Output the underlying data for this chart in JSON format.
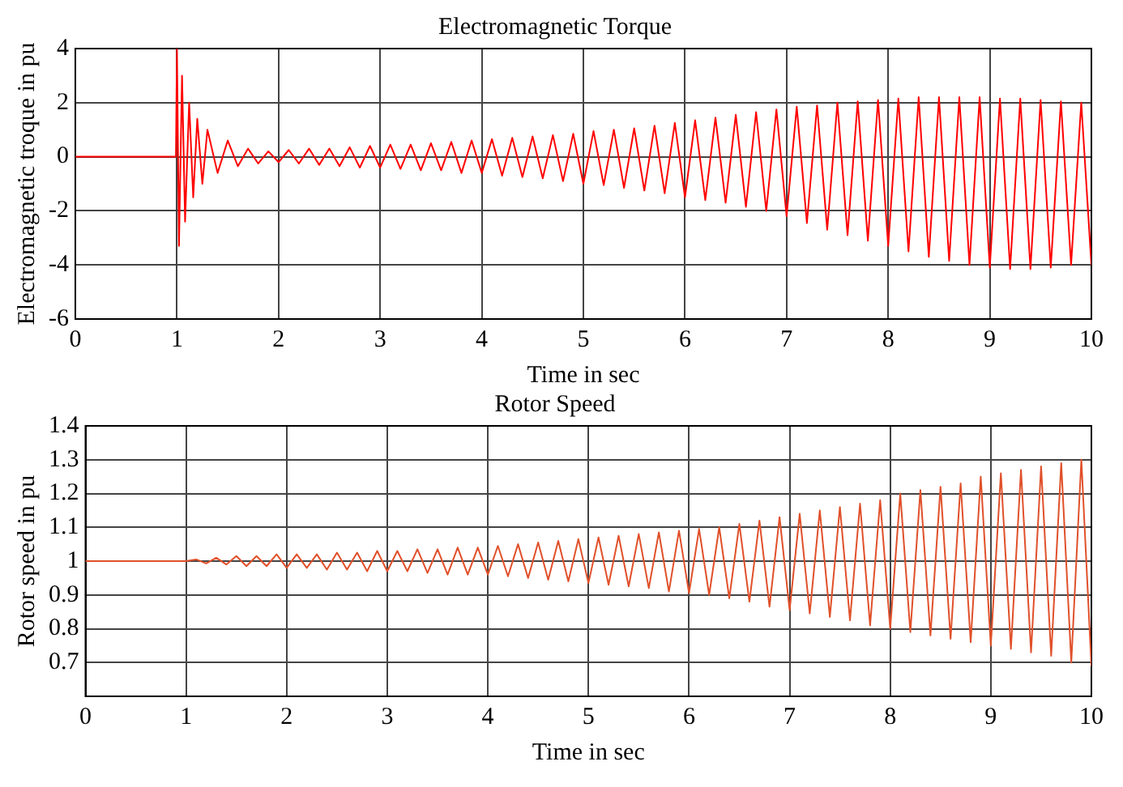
{
  "chart_data": [
    {
      "type": "line",
      "title": "Electromagnetic Torque",
      "xlabel": "Time in sec",
      "ylabel": "Electromagnetic troque in pu",
      "color": "#ff0000",
      "grid": true,
      "line_style": "solid",
      "marker": "none",
      "xlim": [
        0,
        10
      ],
      "xticks": [
        0,
        1,
        2,
        3,
        4,
        5,
        6,
        7,
        8,
        9,
        10
      ],
      "ylim": [
        -6,
        4
      ],
      "yticks": [
        -6,
        -4,
        -2,
        0,
        2,
        4
      ],
      "x": [
        0,
        0.99,
        1.0,
        1.02,
        1.05,
        1.08,
        1.12,
        1.16,
        1.2,
        1.25,
        1.3,
        1.4,
        1.5,
        1.6,
        1.7,
        1.8,
        1.9,
        2.0,
        2.1,
        2.2,
        2.3,
        2.4,
        2.5,
        2.6,
        2.7,
        2.8,
        2.9,
        3.0,
        3.1,
        3.2,
        3.3,
        3.4,
        3.5,
        3.6,
        3.7,
        3.8,
        3.9,
        4.0,
        4.1,
        4.2,
        4.3,
        4.4,
        4.5,
        4.6,
        4.7,
        4.8,
        4.9,
        5.0,
        5.1,
        5.2,
        5.3,
        5.4,
        5.5,
        5.6,
        5.7,
        5.8,
        5.9,
        6.0,
        6.1,
        6.2,
        6.3,
        6.4,
        6.5,
        6.6,
        6.7,
        6.8,
        6.9,
        7.0,
        7.1,
        7.2,
        7.3,
        7.4,
        7.5,
        7.6,
        7.7,
        7.8,
        7.9,
        8.0,
        8.1,
        8.2,
        8.3,
        8.4,
        8.5,
        8.6,
        8.7,
        8.8,
        8.9,
        9.0,
        9.1,
        9.2,
        9.3,
        9.4,
        9.5,
        9.6,
        9.7,
        9.8,
        9.9,
        10.0
      ],
      "values": [
        0,
        0,
        4,
        -3.3,
        3.0,
        -2.4,
        2.0,
        -1.5,
        1.4,
        -1.0,
        1.0,
        -0.6,
        0.6,
        -0.35,
        0.3,
        -0.25,
        0.2,
        -0.2,
        0.25,
        -0.25,
        0.3,
        -0.3,
        0.3,
        -0.35,
        0.35,
        -0.4,
        0.4,
        -0.4,
        0.45,
        -0.45,
        0.45,
        -0.5,
        0.5,
        -0.5,
        0.55,
        -0.6,
        0.6,
        -0.6,
        0.65,
        -0.7,
        0.7,
        -0.75,
        0.75,
        -0.8,
        0.8,
        -0.9,
        0.85,
        -1.0,
        0.95,
        -1.05,
        1.0,
        -1.15,
        1.05,
        -1.25,
        1.15,
        -1.35,
        1.25,
        -1.5,
        1.35,
        -1.6,
        1.45,
        -1.7,
        1.55,
        -1.85,
        1.65,
        -2.0,
        1.75,
        -2.2,
        1.85,
        -2.45,
        1.9,
        -2.7,
        2.0,
        -2.9,
        2.05,
        -3.1,
        2.1,
        -3.3,
        2.15,
        -3.5,
        2.2,
        -3.7,
        2.2,
        -3.85,
        2.2,
        -4.0,
        2.2,
        -4.1,
        2.15,
        -4.15,
        2.15,
        -4.15,
        2.1,
        -4.1,
        2.05,
        -4.0,
        2.0,
        -4.0
      ]
    },
    {
      "type": "line",
      "title": "Rotor Speed",
      "xlabel": "Time in sec",
      "ylabel": "Rotor speed in pu",
      "color": "#e0502a",
      "grid": true,
      "line_style": "solid",
      "marker": "none",
      "xlim": [
        0,
        10
      ],
      "xticks": [
        0,
        1,
        2,
        3,
        4,
        5,
        6,
        7,
        8,
        9,
        10
      ],
      "ylim": [
        0.6,
        1.4
      ],
      "yticks": [
        0.7,
        0.8,
        0.9,
        1,
        1.1,
        1.2,
        1.3,
        1.4
      ],
      "x": [
        0,
        1.0,
        1.1,
        1.2,
        1.3,
        1.4,
        1.5,
        1.6,
        1.7,
        1.8,
        1.9,
        2.0,
        2.1,
        2.2,
        2.3,
        2.4,
        2.5,
        2.6,
        2.7,
        2.8,
        2.9,
        3.0,
        3.1,
        3.2,
        3.3,
        3.4,
        3.5,
        3.6,
        3.7,
        3.8,
        3.9,
        4.0,
        4.1,
        4.2,
        4.3,
        4.4,
        4.5,
        4.6,
        4.7,
        4.8,
        4.9,
        5.0,
        5.1,
        5.2,
        5.3,
        5.4,
        5.5,
        5.6,
        5.7,
        5.8,
        5.9,
        6.0,
        6.1,
        6.2,
        6.3,
        6.4,
        6.5,
        6.6,
        6.7,
        6.8,
        6.9,
        7.0,
        7.1,
        7.2,
        7.3,
        7.4,
        7.5,
        7.6,
        7.7,
        7.8,
        7.9,
        8.0,
        8.1,
        8.2,
        8.3,
        8.4,
        8.5,
        8.6,
        8.7,
        8.8,
        8.9,
        9.0,
        9.1,
        9.2,
        9.3,
        9.4,
        9.5,
        9.6,
        9.7,
        9.8,
        9.9,
        10.0
      ],
      "values": [
        1,
        1,
        1.005,
        0.993,
        1.01,
        0.99,
        1.015,
        0.985,
        1.015,
        0.985,
        1.02,
        0.98,
        1.02,
        0.98,
        1.02,
        0.975,
        1.025,
        0.975,
        1.025,
        0.97,
        1.03,
        0.97,
        1.03,
        0.97,
        1.035,
        0.965,
        1.035,
        0.96,
        1.04,
        0.96,
        1.04,
        0.96,
        1.045,
        0.955,
        1.05,
        0.95,
        1.055,
        0.945,
        1.06,
        0.94,
        1.065,
        0.935,
        1.07,
        0.93,
        1.075,
        0.925,
        1.08,
        0.92,
        1.085,
        0.91,
        1.09,
        0.905,
        1.095,
        0.9,
        1.1,
        0.89,
        1.11,
        0.88,
        1.12,
        0.865,
        1.13,
        0.855,
        1.14,
        0.845,
        1.15,
        0.835,
        1.16,
        0.825,
        1.17,
        0.81,
        1.18,
        0.8,
        1.2,
        0.79,
        1.21,
        0.78,
        1.22,
        0.77,
        1.23,
        0.76,
        1.25,
        0.75,
        1.26,
        0.74,
        1.27,
        0.73,
        1.28,
        0.72,
        1.29,
        0.7,
        1.3,
        0.69
      ]
    }
  ]
}
